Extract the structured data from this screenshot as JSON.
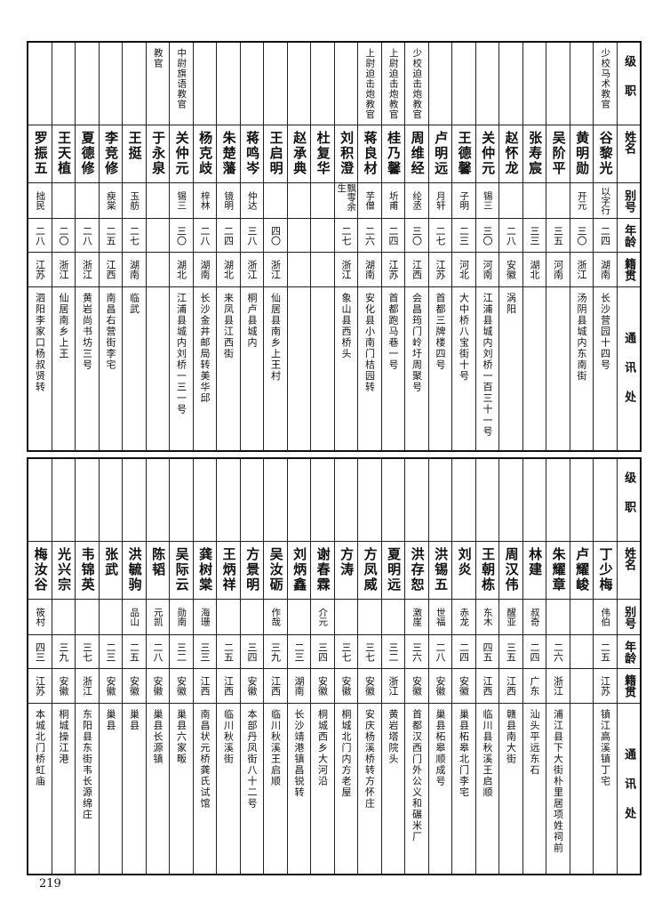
{
  "headers": [
    "级职",
    "姓名",
    "别号",
    "年龄",
    "籍贯",
    "通讯处"
  ],
  "tables": [
    {
      "rows": [
        {
          "rank": "少校马术教官",
          "name": "谷黎光",
          "alias": "以字行",
          "age": "二四",
          "origin": "湖南",
          "address": "长沙营园十四号"
        },
        {
          "rank": "",
          "name": "黄明勋",
          "alias": "开元",
          "age": "三〇",
          "origin": "浙江",
          "address": "汤阴县城内东南街"
        },
        {
          "rank": "",
          "name": "吴阶平",
          "alias": "",
          "age": "三五",
          "origin": "河南",
          "address": ""
        },
        {
          "rank": "",
          "name": "张寿宸",
          "alias": "",
          "age": "三三",
          "origin": "湖北",
          "address": ""
        },
        {
          "rank": "",
          "name": "赵怀龙",
          "alias": "",
          "age": "二八",
          "origin": "安徽",
          "address": "涡阳"
        },
        {
          "rank": "",
          "name": "关仲元",
          "alias": "锡三",
          "age": "三〇",
          "origin": "河南",
          "address": "江浦县城内刘桥一百三十一号"
        },
        {
          "rank": "",
          "name": "王德馨",
          "alias": "子明",
          "age": "二三",
          "origin": "河北",
          "address": "大中桥八宝街十号"
        },
        {
          "rank": "",
          "name": "卢明远",
          "alias": "月轩",
          "age": "二七",
          "origin": "江苏",
          "address": "首都三牌楼四号"
        },
        {
          "rank": "少校迫击炮教官",
          "name": "周维经",
          "alias": "纶丞",
          "age": "三〇",
          "origin": "江西",
          "address": "会昌筠门岭圩周聚号"
        },
        {
          "rank": "上尉迫击炮教官",
          "name": "桂乃馨",
          "alias": "圻甫",
          "age": "二四",
          "origin": "江苏",
          "address": "首都跑马巷一号"
        },
        {
          "rank": "上尉迫击炮教官",
          "name": "蒋良材",
          "alias": "芋僧",
          "age": "二六",
          "origin": "湖南",
          "address": "安化县小南门桔园转"
        },
        {
          "rank": "",
          "name": "刘积澄",
          "alias": "飘零余生",
          "age": "二七",
          "origin": "浙江",
          "address": "象山县西桥头"
        },
        {
          "rank": "",
          "name": "杜复华",
          "alias": "",
          "age": "",
          "origin": "",
          "address": ""
        },
        {
          "rank": "",
          "name": "赵承典",
          "alias": "",
          "age": "",
          "origin": "",
          "address": ""
        },
        {
          "rank": "",
          "name": "王启明",
          "alias": "",
          "age": "四〇",
          "origin": "浙江",
          "address": "仙居县南乡上王村"
        },
        {
          "rank": "",
          "name": "蒋鸣岑",
          "alias": "仲达",
          "age": "三八",
          "origin": "浙江",
          "address": "桐卢县城内"
        },
        {
          "rank": "",
          "name": "朱楚藩",
          "alias": "镜明",
          "age": "二四",
          "origin": "湖北",
          "address": "来凤县江西街"
        },
        {
          "rank": "",
          "name": "杨克歧",
          "alias": "梓林",
          "age": "二八",
          "origin": "湖南",
          "address": "长沙金井邮局转美华邱"
        },
        {
          "rank": "中尉旗语教官",
          "name": "关仲元",
          "alias": "锡三",
          "age": "三〇",
          "origin": "湖北",
          "address": "江浦县城内刘桥一三一号"
        },
        {
          "rank": "教官",
          "name": "于永泉",
          "alias": "",
          "age": "",
          "origin": "",
          "address": ""
        },
        {
          "rank": "",
          "name": "王挺",
          "alias": "玉舫",
          "age": "二七",
          "origin": "湖南",
          "address": "临武"
        },
        {
          "rank": "",
          "name": "李竞修",
          "alias": "瘐棠",
          "age": "二五",
          "origin": "江西",
          "address": "南昌右营街李宅"
        },
        {
          "rank": "",
          "name": "夏德修",
          "alias": "",
          "age": "二八",
          "origin": "浙江",
          "address": "黄岩尚书坊三号"
        },
        {
          "rank": "",
          "name": "王天植",
          "alias": "",
          "age": "二〇",
          "origin": "浙江",
          "address": "仙居南乡上王"
        },
        {
          "rank": "",
          "name": "罗振五",
          "alias": "拙民",
          "age": "二八",
          "origin": "江苏",
          "address": "泗阳李家口杨叔贤转"
        }
      ]
    },
    {
      "rows": [
        {
          "rank": "",
          "name": "丁少梅",
          "alias": "伟伯",
          "age": "二五",
          "origin": "江苏",
          "address": "镇江高溪镇丁宅"
        },
        {
          "rank": "",
          "name": "卢耀峻",
          "alias": "",
          "age": "",
          "origin": "",
          "address": ""
        },
        {
          "rank": "",
          "name": "朱耀章",
          "alias": "",
          "age": "二六",
          "origin": "浙江",
          "address": "浦江县下大街朴里居项姓祠前"
        },
        {
          "rank": "",
          "name": "林建",
          "alias": "叔奇",
          "age": "二四",
          "origin": "广东",
          "address": "汕头平远东石"
        },
        {
          "rank": "",
          "name": "周汉伟",
          "alias": "醒亚",
          "age": "三五",
          "origin": "江西",
          "address": "赣县南大街"
        },
        {
          "rank": "",
          "name": "王朝栋",
          "alias": "东木",
          "age": "四五",
          "origin": "江西",
          "address": "临川县秋溪王启顺"
        },
        {
          "rank": "",
          "name": "刘炎",
          "alias": "赤龙",
          "age": "二四",
          "origin": "安徽",
          "address": "巢县柘皋北门李宅"
        },
        {
          "rank": "",
          "name": "洪锡五",
          "alias": "世福",
          "age": "二八",
          "origin": "安徽",
          "address": "巢县柘皋顺成号"
        },
        {
          "rank": "",
          "name": "洪存恕",
          "alias": "激崖",
          "age": "三六",
          "origin": "安徽",
          "address": "首都汉西门外公义和碾米厂"
        },
        {
          "rank": "",
          "name": "夏明远",
          "alias": "",
          "age": "三二",
          "origin": "浙江",
          "address": "黄岩塔院头"
        },
        {
          "rank": "",
          "name": "方凤威",
          "alias": "",
          "age": "三七",
          "origin": "安徽",
          "address": "安庆杨溪桥转方怀庄"
        },
        {
          "rank": "",
          "name": "方涛",
          "alias": "",
          "age": "三七",
          "origin": "安徽",
          "address": "桐城北门内方老屋"
        },
        {
          "rank": "",
          "name": "谢春霖",
          "alias": "介元",
          "age": "三四",
          "origin": "安徽",
          "address": "桐城西乡大河沿"
        },
        {
          "rank": "",
          "name": "刘炳鑫",
          "alias": "",
          "age": "二三",
          "origin": "湖南",
          "address": "长沙靖港镇昌锐转"
        },
        {
          "rank": "",
          "name": "吴汝砺",
          "alias": "作哉",
          "age": "三九",
          "origin": "江西",
          "address": "临川秋溪王启顺"
        },
        {
          "rank": "",
          "name": "方景明",
          "alias": "",
          "age": "三四",
          "origin": "安徽",
          "address": "本部丹凤街八十二号"
        },
        {
          "rank": "",
          "name": "王炳祥",
          "alias": "",
          "age": "二五",
          "origin": "江西",
          "address": "临川秋溪街"
        },
        {
          "rank": "",
          "name": "龚树棠",
          "alias": "海珊",
          "age": "三三",
          "origin": "江西",
          "address": "南昌状元桥龚氏试馆"
        },
        {
          "rank": "",
          "name": "吴际云",
          "alias": "勋南",
          "age": "三二",
          "origin": "安徽",
          "address": "巢县六家畈"
        },
        {
          "rank": "",
          "name": "陈韬",
          "alias": "元凯",
          "age": "二八",
          "origin": "安徽",
          "address": "巢县长源镇"
        },
        {
          "rank": "",
          "name": "洪毓驹",
          "alias": "品山",
          "age": "二五",
          "origin": "安徽",
          "address": "巢县"
        },
        {
          "rank": "",
          "name": "张武",
          "alias": "",
          "age": "二三",
          "origin": "安徽",
          "address": "巢县"
        },
        {
          "rank": "",
          "name": "韦锦英",
          "alias": "",
          "age": "三七",
          "origin": "浙江",
          "address": "东阳县东街韦长源绵庄"
        },
        {
          "rank": "",
          "name": "光兴宗",
          "alias": "",
          "age": "三九",
          "origin": "安徽",
          "address": "桐城操江港"
        },
        {
          "rank": "",
          "name": "梅汝谷",
          "alias": "筱村",
          "age": "四三",
          "origin": "江苏",
          "address": "本城北门桥虹庙"
        }
      ]
    }
  ],
  "page_number": "219"
}
